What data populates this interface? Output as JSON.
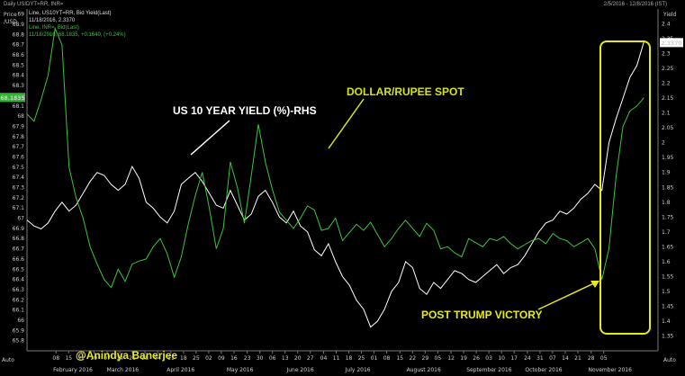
{
  "header": {
    "left_title": "Daily USIDYT=RR, INR=",
    "right_range": "2/5/2016 - 12/8/2016 (IST)",
    "legend": [
      {
        "text": "Line, US10YT=RR, Bid Yield(Last)",
        "color": "#dddddd"
      },
      {
        "text": "11/18/2016, 2.3370",
        "color": "#dddddd"
      },
      {
        "text": "Line, INR=, Bid(Last)",
        "color": "#3cc43c"
      },
      {
        "text": "11/18/2016, 68.1835, +0.1640, (+0.24%)",
        "color": "#3cc43c"
      }
    ]
  },
  "chart_data": {
    "type": "line",
    "left_axis": {
      "title": "Price /USD",
      "ylim": [
        65.7,
        69.05
      ],
      "ticks": [
        "69",
        "68.9",
        "68.8",
        "68.7",
        "68.6",
        "68.5",
        "68.4",
        "68.3",
        "68.2",
        "68.1",
        "68",
        "67.9",
        "67.8",
        "67.7",
        "67.6",
        "67.5",
        "67.4",
        "67.3",
        "67.2",
        "67.1",
        "67",
        "66.9",
        "66.8",
        "66.7",
        "66.6",
        "66.5",
        "66.4",
        "66.3",
        "66.2",
        "66.1",
        "66",
        "65.9",
        "65.8"
      ],
      "current_label": "68.1835"
    },
    "right_axis": {
      "title": "Yield",
      "ylim": [
        1.3,
        2.45
      ],
      "ticks": [
        "2.4",
        "2.35",
        "2.3",
        "2.25",
        "2.2",
        "2.15",
        "2.1",
        "2.05",
        "2",
        "1.95",
        "1.9",
        "1.85",
        "1.8",
        "1.75",
        "1.7",
        "1.65",
        "1.6",
        "1.55",
        "1.5",
        "1.45",
        "1.4",
        "1.35"
      ],
      "current_label": "2.3370"
    },
    "x_ticks": [
      {
        "d": "08",
        "n": 0.046
      },
      {
        "d": "15",
        "n": 0.066
      },
      {
        "d": "22",
        "n": 0.086
      },
      {
        "d": "29",
        "n": 0.106
      },
      {
        "d": "07",
        "n": 0.127
      },
      {
        "d": "14",
        "n": 0.147
      },
      {
        "d": "21",
        "n": 0.167
      },
      {
        "d": "28",
        "n": 0.187
      },
      {
        "d": "04",
        "n": 0.207
      },
      {
        "d": "11",
        "n": 0.228
      },
      {
        "d": "18",
        "n": 0.248
      },
      {
        "d": "25",
        "n": 0.268
      },
      {
        "d": "02",
        "n": 0.288
      },
      {
        "d": "09",
        "n": 0.308
      },
      {
        "d": "16",
        "n": 0.328
      },
      {
        "d": "23",
        "n": 0.349
      },
      {
        "d": "30",
        "n": 0.369
      },
      {
        "d": "06",
        "n": 0.389
      },
      {
        "d": "13",
        "n": 0.409
      },
      {
        "d": "20",
        "n": 0.429
      },
      {
        "d": "27",
        "n": 0.449
      },
      {
        "d": "04",
        "n": 0.47
      },
      {
        "d": "11",
        "n": 0.49
      },
      {
        "d": "18",
        "n": 0.51
      },
      {
        "d": "25",
        "n": 0.53
      },
      {
        "d": "01",
        "n": 0.55
      },
      {
        "d": "08",
        "n": 0.57
      },
      {
        "d": "15",
        "n": 0.591
      },
      {
        "d": "22",
        "n": 0.611
      },
      {
        "d": "29",
        "n": 0.631
      },
      {
        "d": "05",
        "n": 0.651
      },
      {
        "d": "12",
        "n": 0.672
      },
      {
        "d": "19",
        "n": 0.692
      },
      {
        "d": "26",
        "n": 0.712
      },
      {
        "d": "03",
        "n": 0.732
      },
      {
        "d": "10",
        "n": 0.752
      },
      {
        "d": "17",
        "n": 0.772
      },
      {
        "d": "24",
        "n": 0.793
      },
      {
        "d": "31",
        "n": 0.813
      },
      {
        "d": "07",
        "n": 0.833
      },
      {
        "d": "14",
        "n": 0.853
      },
      {
        "d": "21",
        "n": 0.873
      },
      {
        "d": "28",
        "n": 0.894
      },
      {
        "d": "05",
        "n": 0.914
      }
    ],
    "months": [
      {
        "label": "February 2016",
        "n": 0.07
      },
      {
        "label": "March 2016",
        "n": 0.155
      },
      {
        "label": "April 2016",
        "n": 0.25
      },
      {
        "label": "May 2016",
        "n": 0.345
      },
      {
        "label": "June 2016",
        "n": 0.44
      },
      {
        "label": "July 2016",
        "n": 0.533
      },
      {
        "label": "August 2016",
        "n": 0.63
      },
      {
        "label": "September 2016",
        "n": 0.725
      },
      {
        "label": "October 2016",
        "n": 0.818
      },
      {
        "label": "November 2016",
        "n": 0.918
      }
    ],
    "x_unit_label": "Auto",
    "series": [
      {
        "name": "US 10 YEAR YIELD (%)-RHS",
        "axis": "right",
        "color": "#ffffff",
        "points": [
          [
            0,
            1.74
          ],
          [
            0.02,
            1.72
          ],
          [
            0.04,
            1.71
          ],
          [
            0.06,
            1.73
          ],
          [
            0.08,
            1.77
          ],
          [
            0.1,
            1.8
          ],
          [
            0.12,
            1.77
          ],
          [
            0.14,
            1.79
          ],
          [
            0.16,
            1.83
          ],
          [
            0.18,
            1.87
          ],
          [
            0.2,
            1.9
          ],
          [
            0.22,
            1.89
          ],
          [
            0.24,
            1.86
          ],
          [
            0.26,
            1.84
          ],
          [
            0.28,
            1.86
          ],
          [
            0.3,
            1.92
          ],
          [
            0.32,
            1.88
          ],
          [
            0.34,
            1.8
          ],
          [
            0.36,
            1.78
          ],
          [
            0.38,
            1.75
          ],
          [
            0.4,
            1.73
          ],
          [
            0.42,
            1.77
          ],
          [
            0.44,
            1.86
          ],
          [
            0.46,
            1.88
          ],
          [
            0.48,
            1.9
          ],
          [
            0.5,
            1.87
          ],
          [
            0.52,
            1.83
          ],
          [
            0.54,
            1.79
          ],
          [
            0.56,
            1.78
          ],
          [
            0.58,
            1.84
          ],
          [
            0.6,
            1.79
          ],
          [
            0.62,
            1.74
          ],
          [
            0.64,
            1.76
          ],
          [
            0.66,
            1.82
          ],
          [
            0.68,
            1.84
          ],
          [
            0.7,
            1.8
          ],
          [
            0.72,
            1.75
          ],
          [
            0.74,
            1.73
          ],
          [
            0.76,
            1.77
          ],
          [
            0.78,
            1.72
          ],
          [
            0.8,
            1.7
          ],
          [
            0.82,
            1.64
          ],
          [
            0.84,
            1.62
          ],
          [
            0.86,
            1.66
          ],
          [
            0.88,
            1.6
          ],
          [
            0.9,
            1.55
          ],
          [
            0.92,
            1.52
          ],
          [
            0.94,
            1.47
          ],
          [
            0.96,
            1.44
          ],
          [
            0.98,
            1.38
          ],
          [
            1.0,
            1.4
          ],
          [
            1.02,
            1.44
          ],
          [
            1.04,
            1.5
          ],
          [
            1.06,
            1.53
          ],
          [
            1.08,
            1.6
          ],
          [
            1.1,
            1.58
          ],
          [
            1.12,
            1.51
          ],
          [
            1.14,
            1.49
          ],
          [
            1.16,
            1.53
          ],
          [
            1.18,
            1.51
          ],
          [
            1.2,
            1.54
          ],
          [
            1.22,
            1.57
          ],
          [
            1.24,
            1.56
          ],
          [
            1.26,
            1.54
          ],
          [
            1.28,
            1.53
          ],
          [
            1.3,
            1.55
          ],
          [
            1.32,
            1.57
          ],
          [
            1.34,
            1.59
          ],
          [
            1.36,
            1.56
          ],
          [
            1.38,
            1.58
          ],
          [
            1.4,
            1.59
          ],
          [
            1.42,
            1.62
          ],
          [
            1.44,
            1.66
          ],
          [
            1.46,
            1.7
          ],
          [
            1.48,
            1.73
          ],
          [
            1.5,
            1.74
          ],
          [
            1.52,
            1.77
          ],
          [
            1.54,
            1.76
          ],
          [
            1.56,
            1.78
          ],
          [
            1.58,
            1.81
          ],
          [
            1.6,
            1.83
          ],
          [
            1.62,
            1.86
          ],
          [
            1.64,
            1.84
          ],
          [
            1.66,
            2.0
          ],
          [
            1.68,
            2.08
          ],
          [
            1.7,
            2.15
          ],
          [
            1.72,
            2.22
          ],
          [
            1.74,
            2.26
          ],
          [
            1.76,
            2.34
          ]
        ]
      },
      {
        "name": "DOLLAR/RUPEE SPOT",
        "axis": "left",
        "color": "#3cc43c",
        "points": [
          [
            0,
            68.02
          ],
          [
            0.02,
            67.95
          ],
          [
            0.04,
            68.16
          ],
          [
            0.06,
            68.4
          ],
          [
            0.08,
            68.86
          ],
          [
            0.1,
            68.7
          ],
          [
            0.12,
            67.5
          ],
          [
            0.14,
            67.2
          ],
          [
            0.16,
            67.0
          ],
          [
            0.18,
            66.72
          ],
          [
            0.2,
            66.55
          ],
          [
            0.22,
            66.4
          ],
          [
            0.24,
            66.32
          ],
          [
            0.26,
            66.5
          ],
          [
            0.28,
            66.38
          ],
          [
            0.3,
            66.55
          ],
          [
            0.32,
            66.58
          ],
          [
            0.34,
            66.6
          ],
          [
            0.36,
            66.72
          ],
          [
            0.38,
            66.8
          ],
          [
            0.4,
            66.65
          ],
          [
            0.42,
            66.42
          ],
          [
            0.44,
            66.62
          ],
          [
            0.46,
            66.94
          ],
          [
            0.48,
            67.22
          ],
          [
            0.5,
            67.45
          ],
          [
            0.52,
            67.1
          ],
          [
            0.54,
            66.7
          ],
          [
            0.56,
            66.9
          ],
          [
            0.58,
            67.55
          ],
          [
            0.6,
            67.3
          ],
          [
            0.62,
            66.95
          ],
          [
            0.64,
            67.42
          ],
          [
            0.66,
            67.92
          ],
          [
            0.68,
            67.55
          ],
          [
            0.7,
            67.28
          ],
          [
            0.72,
            67.06
          ],
          [
            0.74,
            66.98
          ],
          [
            0.76,
            66.9
          ],
          [
            0.78,
            67.0
          ],
          [
            0.8,
            67.12
          ],
          [
            0.82,
            67.08
          ],
          [
            0.84,
            66.88
          ],
          [
            0.86,
            66.9
          ],
          [
            0.88,
            67.0
          ],
          [
            0.9,
            66.78
          ],
          [
            0.92,
            66.86
          ],
          [
            0.94,
            66.94
          ],
          [
            0.96,
            66.88
          ],
          [
            0.98,
            66.96
          ],
          [
            1.0,
            66.84
          ],
          [
            1.02,
            66.72
          ],
          [
            1.04,
            66.8
          ],
          [
            1.06,
            66.9
          ],
          [
            1.08,
            66.98
          ],
          [
            1.1,
            66.9
          ],
          [
            1.12,
            66.82
          ],
          [
            1.14,
            66.95
          ],
          [
            1.16,
            66.88
          ],
          [
            1.18,
            66.7
          ],
          [
            1.2,
            66.72
          ],
          [
            1.22,
            66.66
          ],
          [
            1.24,
            66.62
          ],
          [
            1.26,
            66.8
          ],
          [
            1.28,
            66.76
          ],
          [
            1.3,
            66.72
          ],
          [
            1.32,
            66.8
          ],
          [
            1.34,
            66.78
          ],
          [
            1.36,
            66.82
          ],
          [
            1.38,
            66.75
          ],
          [
            1.4,
            66.7
          ],
          [
            1.42,
            66.74
          ],
          [
            1.44,
            66.78
          ],
          [
            1.46,
            66.8
          ],
          [
            1.48,
            66.75
          ],
          [
            1.5,
            66.85
          ],
          [
            1.52,
            66.8
          ],
          [
            1.54,
            66.78
          ],
          [
            1.56,
            66.72
          ],
          [
            1.58,
            66.76
          ],
          [
            1.6,
            66.8
          ],
          [
            1.62,
            66.7
          ],
          [
            1.64,
            66.4
          ],
          [
            1.66,
            66.7
          ],
          [
            1.68,
            67.4
          ],
          [
            1.7,
            67.9
          ],
          [
            1.72,
            68.05
          ],
          [
            1.74,
            68.1
          ],
          [
            1.76,
            68.18
          ]
        ]
      }
    ],
    "annotations": [
      {
        "text": "US 10 YEAR YIELD (%)-RHS",
        "color": "#ffffff"
      },
      {
        "text": "DOLLAR/RUPEE SPOT",
        "color": "#d4e21b"
      },
      {
        "text": "POST TRUMP VICTORY",
        "color": "#e8e81a"
      },
      {
        "text": "@Anindya Banerjee",
        "color": "#e8e81a"
      }
    ],
    "legend": "top-left",
    "grid": false
  }
}
